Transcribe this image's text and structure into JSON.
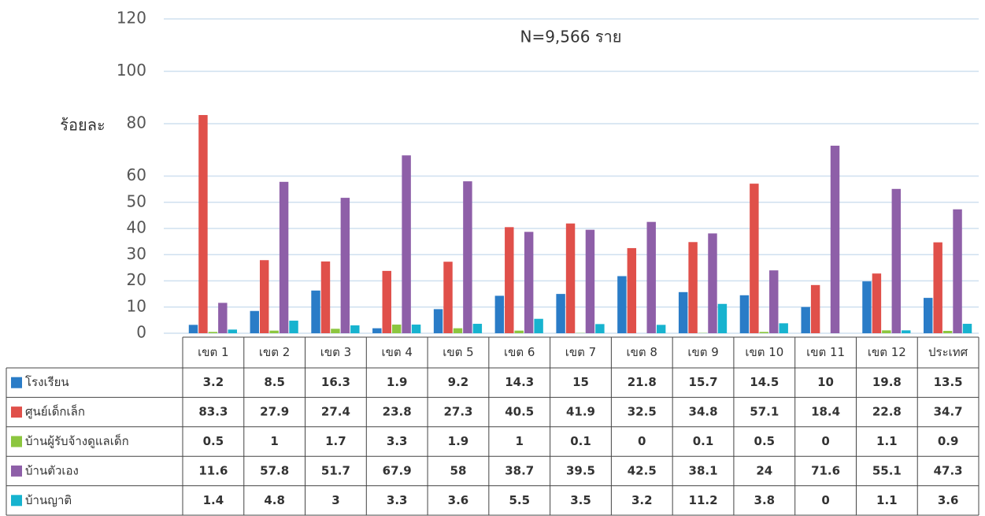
{
  "chart_data": {
    "type": "bar",
    "annotation": "N=9,566 ราย",
    "y_label": "ร้อยละ",
    "categories": [
      "เขต 1",
      "เขต 2",
      "เขต 3",
      "เขต 4",
      "เขต 5",
      "เขต 6",
      "เขต 7",
      "เขต 8",
      "เขต 9",
      "เขต 10",
      "เขต 11",
      "เขต 12",
      "ประเทศ"
    ],
    "series": [
      {
        "name": "โรงเรียน",
        "color": "#2a7cc7",
        "values": [
          3.2,
          8.5,
          16.3,
          1.9,
          9.2,
          14.3,
          15,
          21.8,
          15.7,
          14.5,
          10,
          19.8,
          13.5
        ]
      },
      {
        "name": "ศูนย์เด็กเล็ก",
        "color": "#e0504a",
        "values": [
          83.3,
          27.9,
          27.4,
          23.8,
          27.3,
          40.5,
          41.9,
          32.5,
          34.8,
          57.1,
          18.4,
          22.8,
          34.7
        ]
      },
      {
        "name": "บ้านผู้รับจ้างดูแลเด็ก",
        "color": "#8cc63f",
        "values": [
          0.5,
          1,
          1.7,
          3.3,
          1.9,
          1,
          0.1,
          0,
          0.1,
          0.5,
          0,
          1.1,
          0.9
        ]
      },
      {
        "name": "บ้านตัวเอง",
        "color": "#8e5fa8",
        "values": [
          11.6,
          57.8,
          51.7,
          67.9,
          58,
          38.7,
          39.5,
          42.5,
          38.1,
          24,
          71.6,
          55.1,
          47.3
        ]
      },
      {
        "name": "บ้านญาติ",
        "color": "#17b3cf",
        "values": [
          1.4,
          4.8,
          3,
          3.3,
          3.6,
          5.5,
          3.5,
          3.2,
          11.2,
          3.8,
          0,
          1.1,
          3.6
        ]
      }
    ],
    "ylim": [
      0,
      120
    ],
    "yticks": [
      0,
      10,
      20,
      30,
      40,
      50,
      60,
      80,
      100,
      120
    ],
    "grid": true
  }
}
